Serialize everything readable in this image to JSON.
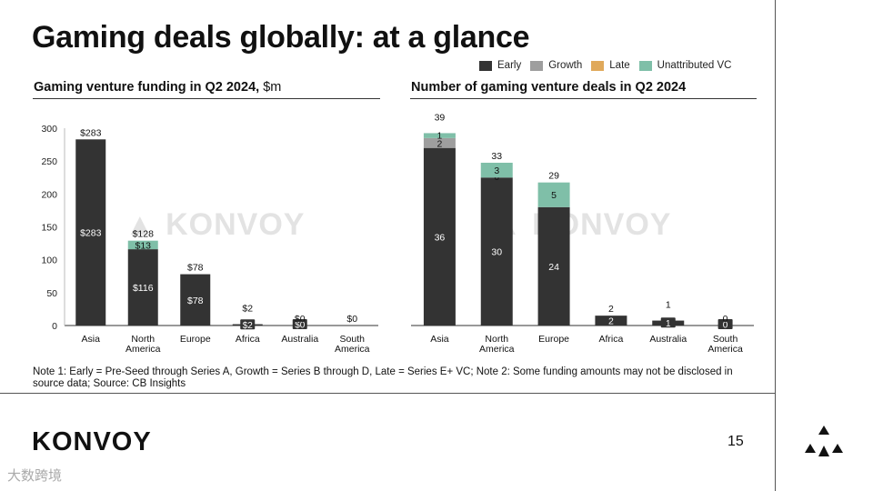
{
  "title": "Gaming deals globally: at a glance",
  "legend": [
    {
      "label": "Early",
      "color": "#333333"
    },
    {
      "label": "Growth",
      "color": "#9e9e9e"
    },
    {
      "label": "Late",
      "color": "#e0a95b"
    },
    {
      "label": "Unattributed VC",
      "color": "#7fbfa8"
    }
  ],
  "left_title": {
    "main": "Gaming venture funding in Q2 2024,",
    "unit": " $m"
  },
  "right_title": "Number of gaming venture deals in Q2 2024",
  "watermark": "KONVOY",
  "note": "Note 1: Early = Pre-Seed through Series A, Growth = Series B through D, Late = Series E+ VC; Note 2: Some funding amounts may not be disclosed in source data; Source: CB Insights",
  "logo": "KONVOY",
  "page_number": "15",
  "cn_watermark": "大数跨境",
  "chart_data": [
    {
      "type": "bar",
      "stacked": true,
      "title": "Gaming venture funding in Q2 2024, $m",
      "categories": [
        "Asia",
        "North America",
        "Europe",
        "Africa",
        "Australia",
        "South America"
      ],
      "category_lines": [
        [
          "Asia"
        ],
        [
          "North",
          "America"
        ],
        [
          "Europe"
        ],
        [
          "Africa"
        ],
        [
          "Australia"
        ],
        [
          "South",
          "America"
        ]
      ],
      "series": [
        {
          "name": "Early",
          "values": [
            283,
            116,
            78,
            2,
            0,
            0
          ],
          "labels": [
            "$283",
            "$116",
            "$78",
            "$2",
            "$0",
            ""
          ]
        },
        {
          "name": "Unattributed VC",
          "values": [
            0,
            13,
            0,
            0,
            0,
            0
          ],
          "labels": [
            "",
            "$13",
            "",
            "",
            "",
            ""
          ]
        }
      ],
      "totals": [
        "$283",
        "$128",
        "$78",
        "$2",
        "$0",
        "$0"
      ],
      "ylim": [
        0,
        300
      ],
      "yticks": [
        0,
        50,
        100,
        150,
        200,
        250,
        300
      ]
    },
    {
      "type": "bar",
      "stacked": true,
      "title": "Number of gaming venture deals in Q2 2024",
      "categories": [
        "Asia",
        "North America",
        "Europe",
        "Africa",
        "Australia",
        "South America"
      ],
      "category_lines": [
        [
          "Asia"
        ],
        [
          "North",
          "America"
        ],
        [
          "Europe"
        ],
        [
          "Africa"
        ],
        [
          "Australia"
        ],
        [
          "South",
          "America"
        ]
      ],
      "series": [
        {
          "name": "Early",
          "values": [
            36,
            30,
            24,
            2,
            1,
            0
          ],
          "labels": [
            "36",
            "30",
            "24",
            "2",
            "1",
            "0"
          ]
        },
        {
          "name": "Growth",
          "values": [
            2,
            0,
            0,
            0,
            0,
            0
          ],
          "labels": [
            "2",
            "0",
            "",
            "",
            "",
            ""
          ]
        },
        {
          "name": "Unattributed VC",
          "values": [
            1,
            3,
            5,
            0,
            0,
            0
          ],
          "labels": [
            "1",
            "3",
            "5",
            "",
            "",
            ""
          ]
        }
      ],
      "totals": [
        "39",
        "33",
        "29",
        "2",
        "1",
        "0"
      ],
      "ylim": [
        0,
        40
      ]
    }
  ]
}
